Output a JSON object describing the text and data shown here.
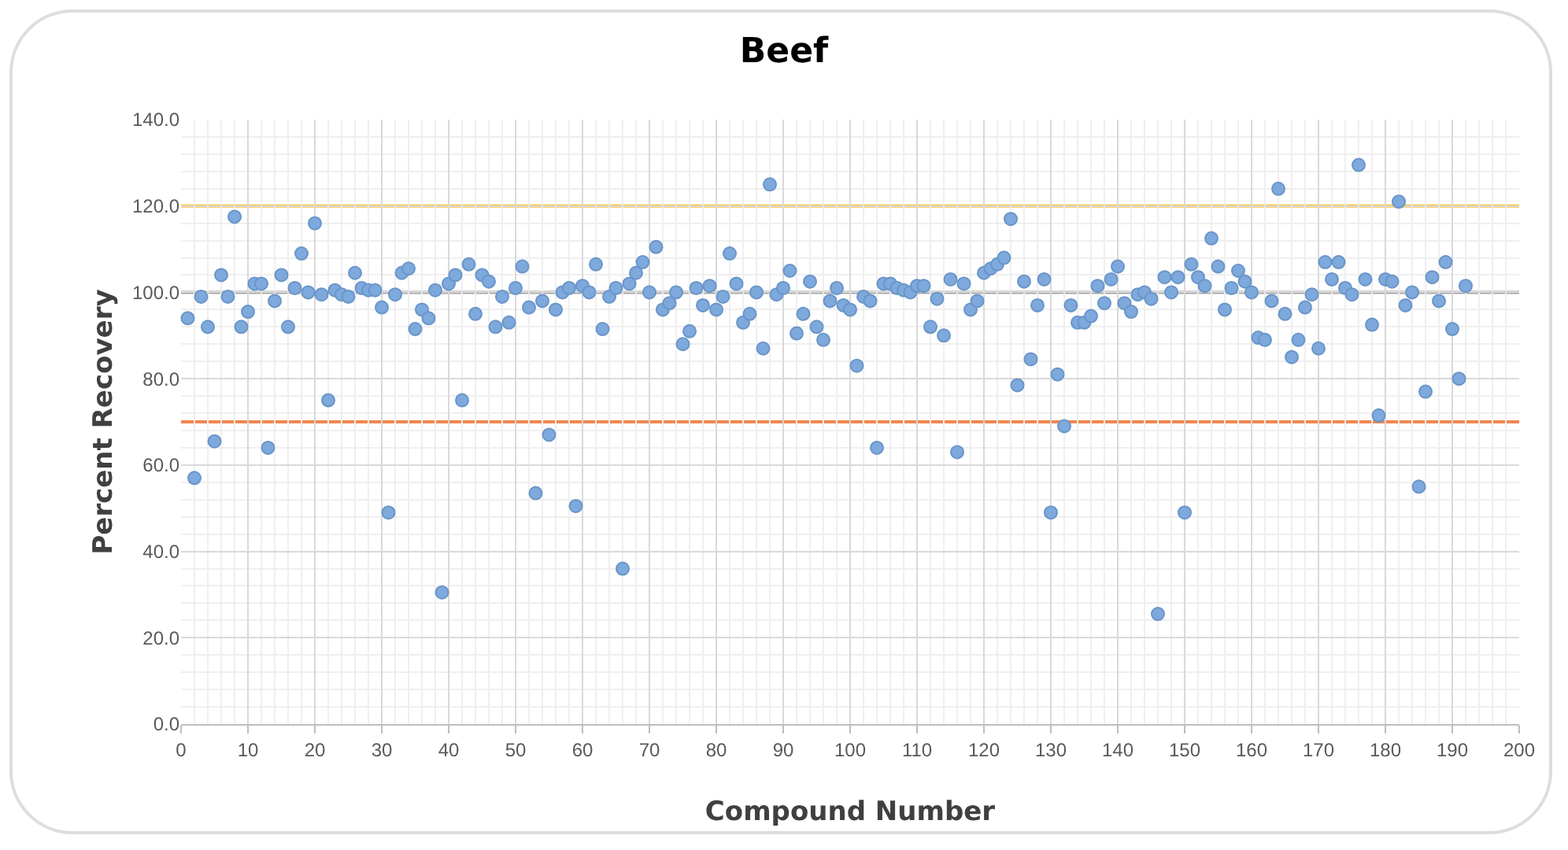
{
  "chart_data": {
    "type": "scatter",
    "title": "Beef",
    "xlabel": "Compound Number",
    "ylabel": "Percent Recovery",
    "x": [
      1,
      2,
      3,
      4,
      5,
      6,
      7,
      8,
      9,
      10,
      11,
      12,
      13,
      14,
      15,
      16,
      17,
      18,
      19,
      20,
      21,
      22,
      23,
      24,
      25,
      26,
      27,
      28,
      29,
      30,
      31,
      32,
      33,
      34,
      35,
      36,
      37,
      38,
      39,
      40,
      41,
      42,
      43,
      44,
      45,
      46,
      47,
      48,
      49,
      50,
      51,
      52,
      53,
      54,
      55,
      56,
      57,
      58,
      59,
      60,
      61,
      62,
      63,
      64,
      65,
      66,
      67,
      68,
      69,
      70,
      71,
      72,
      73,
      74,
      75,
      76,
      77,
      78,
      79,
      80,
      81,
      82,
      83,
      84,
      85,
      86,
      87,
      88,
      89,
      90,
      91,
      92,
      93,
      94,
      95,
      96,
      97,
      98,
      99,
      100,
      101,
      102,
      103,
      104,
      105,
      106,
      107,
      108,
      109,
      110,
      111,
      112,
      113,
      114,
      115,
      116,
      117,
      118,
      119,
      120,
      121,
      122,
      123,
      124,
      125,
      126,
      127,
      128,
      129,
      130,
      131,
      132,
      133,
      134,
      135,
      136,
      137,
      138,
      139,
      140,
      141,
      142,
      143,
      144,
      145,
      146,
      147,
      148,
      149,
      150,
      151,
      152,
      153,
      154,
      155,
      156,
      157,
      158,
      159,
      160,
      161,
      162,
      163,
      164,
      165,
      166,
      167,
      168,
      169,
      170,
      171,
      172,
      173,
      174,
      175,
      176,
      177,
      178,
      179,
      180,
      181,
      182,
      183,
      184,
      185,
      186,
      187,
      188,
      189,
      190,
      191,
      192
    ],
    "series": [
      {
        "color": "#7ea9dd",
        "values": [
          94,
          57,
          99,
          92,
          65.5,
          104,
          99,
          117.5,
          92,
          95.5,
          102,
          102,
          64,
          98,
          104,
          92,
          101,
          109,
          100,
          116,
          99.5,
          75,
          100.5,
          99.5,
          99,
          104.5,
          101,
          100.5,
          100.5,
          96.5,
          49,
          99.5,
          104.5,
          105.5,
          91.5,
          96,
          94,
          100.5,
          30.5,
          102,
          104,
          75,
          106.5,
          95,
          104,
          102.5,
          92,
          99,
          93,
          101,
          106,
          96.5,
          53.5,
          98,
          67,
          96,
          100,
          101,
          50.5,
          101.5,
          100,
          106.5,
          91.5,
          99,
          101,
          36,
          102,
          104.5,
          107,
          100,
          110.5,
          96,
          97.5,
          100,
          88,
          91,
          101,
          97,
          101.5,
          96,
          99,
          109,
          102,
          93,
          95,
          100,
          87,
          125,
          99.5,
          101,
          105,
          90.5,
          95,
          102.5,
          92,
          89,
          98,
          101,
          97,
          96,
          83,
          99,
          98,
          64,
          102,
          102,
          101,
          100.5,
          100,
          101.5,
          101.5,
          92,
          98.5,
          90,
          103,
          63,
          102,
          96,
          98,
          104.5,
          105.5,
          106.5,
          108,
          117,
          78.5,
          102.5,
          84.5,
          97,
          103,
          49,
          81,
          69,
          97,
          93,
          93,
          94.5,
          101.5,
          97.5,
          103,
          106,
          97.5,
          95.5,
          99.5,
          100,
          98.5,
          25.5,
          103.5,
          100,
          103.5,
          49,
          106.5,
          103.5,
          101.5,
          112.5,
          106,
          96,
          101,
          105,
          102.5,
          100,
          89.5,
          89,
          98,
          124,
          95,
          85,
          89,
          96.5,
          99.5,
          87,
          107,
          103,
          107,
          101,
          99.5,
          129.5,
          103,
          92.5,
          71.5,
          103,
          102.5,
          121,
          97,
          100,
          55,
          77,
          103.5,
          98,
          107,
          91.5,
          80,
          101.5
        ]
      }
    ],
    "xlim": [
      0,
      200
    ],
    "xticks": [
      0,
      10,
      20,
      30,
      40,
      50,
      60,
      70,
      80,
      90,
      100,
      110,
      120,
      130,
      140,
      150,
      160,
      170,
      180,
      190,
      200
    ],
    "ylim": [
      0,
      140
    ],
    "yticks": [
      {
        "value": 0,
        "label": "0.0"
      },
      {
        "value": 20,
        "label": "20.0"
      },
      {
        "value": 40,
        "label": "40.0"
      },
      {
        "value": 60,
        "label": "60.0"
      },
      {
        "value": 80,
        "label": "80.0"
      },
      {
        "value": 100,
        "label": "100.0"
      },
      {
        "value": 120,
        "label": "120.0"
      },
      {
        "value": 140,
        "label": "140.0"
      }
    ],
    "ref_lines": [
      {
        "axis": "y",
        "value": 120,
        "color": "#ffc233"
      },
      {
        "axis": "y",
        "value": 100,
        "color": "#a5a5a5"
      },
      {
        "axis": "y",
        "value": 70,
        "color": "#f08650"
      }
    ],
    "grid": true,
    "marker": "circle"
  }
}
